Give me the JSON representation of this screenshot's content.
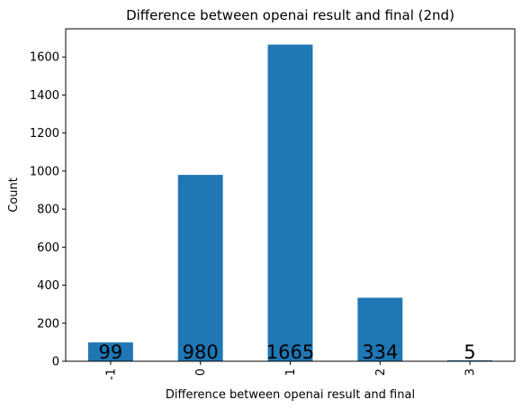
{
  "chart_data": {
    "type": "bar",
    "title": "Difference between openai result and final (2nd)",
    "xlabel": "Difference between openai result and final",
    "ylabel": "Count",
    "categories": [
      "-1",
      "0",
      "1",
      "2",
      "3"
    ],
    "values": [
      99,
      980,
      1665,
      334,
      5
    ],
    "data_labels": [
      "99",
      "980",
      "1665",
      "334",
      "5"
    ],
    "yticks": [
      "0",
      "200",
      "400",
      "600",
      "800",
      "1000",
      "1200",
      "1400",
      "1600"
    ],
    "ylim": [
      0,
      1748
    ],
    "grid": false,
    "legend": "none",
    "bar_color": "#1f77b4"
  }
}
